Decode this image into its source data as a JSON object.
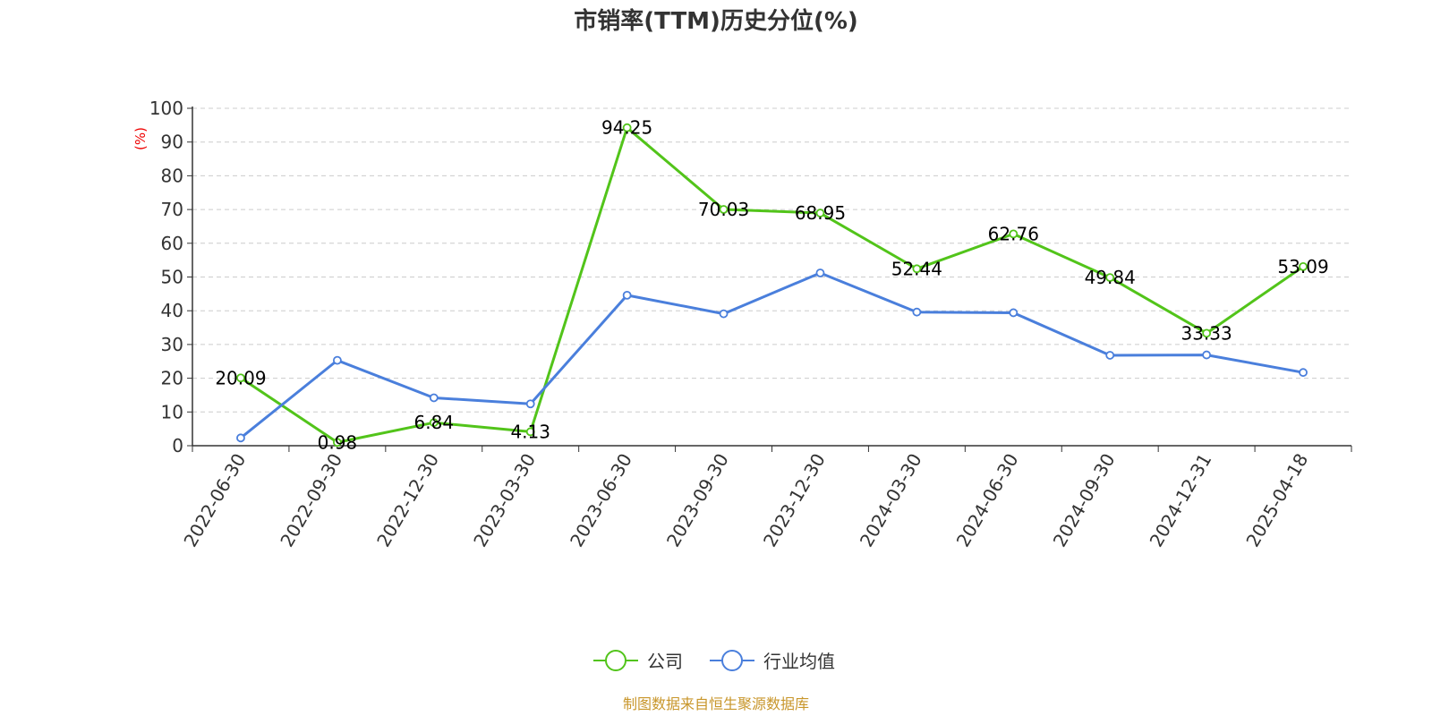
{
  "chart_data": {
    "type": "line",
    "title": "市销率(TTM)历史分位(%)",
    "ylabel": "(%)",
    "xlabel": "",
    "ylim": [
      0,
      100
    ],
    "yticks": [
      0,
      10,
      20,
      30,
      40,
      50,
      60,
      70,
      80,
      90,
      100
    ],
    "grid": true,
    "legend_position": "bottom-center",
    "categories": [
      "2022-06-30",
      "2022-09-30",
      "2022-12-30",
      "2023-03-30",
      "2023-06-30",
      "2023-09-30",
      "2023-12-30",
      "2024-03-30",
      "2024-06-30",
      "2024-09-30",
      "2024-12-31",
      "2025-04-18"
    ],
    "series": [
      {
        "name": "公司",
        "color": "#52c41a",
        "show_labels": true,
        "values": [
          20.09,
          0.98,
          6.84,
          4.13,
          94.25,
          70.03,
          68.95,
          52.44,
          62.76,
          49.84,
          33.33,
          53.09
        ]
      },
      {
        "name": "行业均值",
        "color": "#4a7fdc",
        "show_labels": false,
        "values": [
          2.3,
          25.3,
          14.2,
          12.4,
          44.6,
          39.1,
          51.2,
          39.6,
          39.4,
          26.8,
          26.9,
          21.7
        ]
      }
    ],
    "source": "制图数据来自恒生聚源数据库"
  }
}
